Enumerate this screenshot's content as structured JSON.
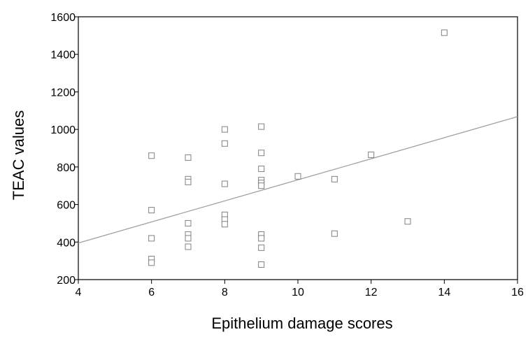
{
  "chart_data": {
    "type": "scatter",
    "title": "",
    "xlabel": "Epithelium damage scores",
    "ylabel": "TEAC values",
    "xlim": [
      4,
      16
    ],
    "ylim": [
      200,
      1600
    ],
    "xticks": [
      4,
      6,
      8,
      10,
      12,
      14,
      16
    ],
    "yticks": [
      200,
      400,
      600,
      800,
      1000,
      1200,
      1400,
      1600
    ],
    "grid": false,
    "legend": "none",
    "marker": "hollow-square",
    "marker_color": "#808080",
    "points": [
      {
        "x": 6,
        "y": 860
      },
      {
        "x": 6,
        "y": 570
      },
      {
        "x": 6,
        "y": 420
      },
      {
        "x": 6,
        "y": 310
      },
      {
        "x": 6,
        "y": 290
      },
      {
        "x": 7,
        "y": 850
      },
      {
        "x": 7,
        "y": 735
      },
      {
        "x": 7,
        "y": 720
      },
      {
        "x": 7,
        "y": 500
      },
      {
        "x": 7,
        "y": 440
      },
      {
        "x": 7,
        "y": 420
      },
      {
        "x": 7,
        "y": 375
      },
      {
        "x": 8,
        "y": 1000
      },
      {
        "x": 8,
        "y": 925
      },
      {
        "x": 8,
        "y": 710
      },
      {
        "x": 8,
        "y": 545
      },
      {
        "x": 8,
        "y": 520
      },
      {
        "x": 8,
        "y": 495
      },
      {
        "x": 9,
        "y": 1015
      },
      {
        "x": 9,
        "y": 875
      },
      {
        "x": 9,
        "y": 790
      },
      {
        "x": 9,
        "y": 730
      },
      {
        "x": 9,
        "y": 715
      },
      {
        "x": 9,
        "y": 700
      },
      {
        "x": 9,
        "y": 440
      },
      {
        "x": 9,
        "y": 420
      },
      {
        "x": 9,
        "y": 370
      },
      {
        "x": 9,
        "y": 280
      },
      {
        "x": 10,
        "y": 750
      },
      {
        "x": 11,
        "y": 735
      },
      {
        "x": 11,
        "y": 445
      },
      {
        "x": 12,
        "y": 865
      },
      {
        "x": 13,
        "y": 510
      },
      {
        "x": 14,
        "y": 1515
      }
    ],
    "fit_line": {
      "color": "#a0a0a0",
      "points": [
        {
          "x": 4,
          "y": 395
        },
        {
          "x": 16,
          "y": 1068
        }
      ]
    }
  }
}
